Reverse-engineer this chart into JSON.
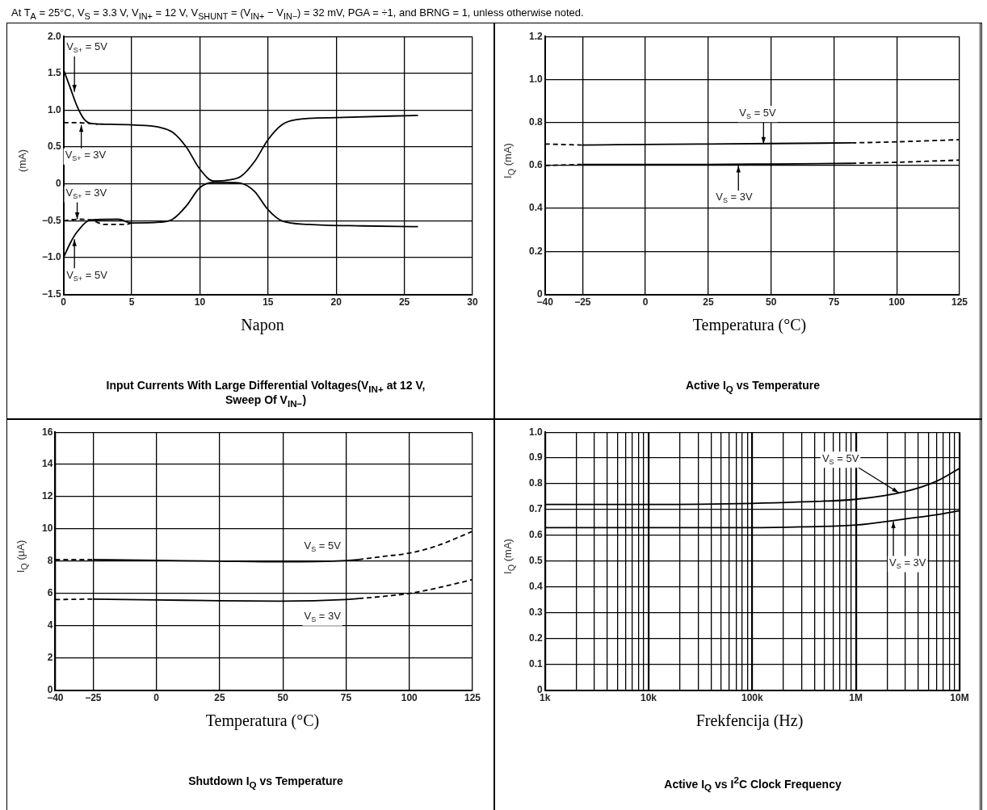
{
  "chart_data": [
    {
      "type": "other",
      "annotations": [
        "At T$_{A}$ = 25°C, V$_{S}$ = 3.3 V, V$_{IN+}$ = 12 V, V$_{SHUNT}$ = (V$_{IN+}$ − V$_{IN−}$) = 32 mV, PGA = ÷1, and BRNG = 1, unless otherwise noted."
      ]
    },
    {
      "type": "line",
      "title": "Input Currents With Large Differential Voltages(V$_{IN+}$ at 12 V, Sweep Of V$_{IN−}$)",
      "xlabel": "Napon",
      "ylabel": "(mA)",
      "xlim": [
        0,
        30
      ],
      "xticks": [
        0,
        5,
        10,
        15,
        20,
        25,
        30
      ],
      "ylim": [
        -1.5,
        2
      ],
      "yticks": [
        {
          "value": -1.5,
          "label": "−1.5"
        },
        {
          "value": -1,
          "label": "−1.0"
        },
        {
          "value": -0.5,
          "label": "−0.5"
        },
        0,
        0.5,
        {
          "value": 1,
          "label": "1.0"
        },
        1.5,
        {
          "value": 2,
          "label": "2.0"
        }
      ],
      "grid": true,
      "legend": false,
      "marker": "none",
      "series": [
        {
          "color": "#000000",
          "line_style": "solid",
          "x": [
            0,
            0.5,
            1,
            1.5,
            2,
            3,
            5,
            7,
            8,
            9,
            10,
            11,
            12,
            13,
            14,
            15,
            16,
            17,
            20,
            26
          ],
          "values": [
            1.55,
            1.3,
            1.05,
            0.88,
            0.82,
            0.81,
            0.8,
            0.77,
            0.7,
            0.5,
            0.2,
            0.04,
            0.05,
            0.1,
            0.3,
            0.6,
            0.8,
            0.87,
            0.9,
            0.93
          ]
        },
        {
          "color": "#000000",
          "line_style": "dashed",
          "x": [
            0,
            1,
            2,
            2.5
          ],
          "values": [
            0.83,
            0.83,
            0.82,
            0.81
          ]
        },
        {
          "color": "#000000",
          "line_style": "dashed",
          "x": [
            0,
            1,
            2,
            3,
            4.5,
            5
          ],
          "values": [
            -0.5,
            -0.48,
            -0.49,
            -0.55,
            -0.55,
            -0.53
          ]
        },
        {
          "color": "#000000",
          "line_style": "solid",
          "x": [
            0,
            0.5,
            1,
            2,
            4,
            5,
            7,
            8,
            9,
            10,
            11,
            12,
            13,
            14,
            15,
            16,
            18,
            22,
            26
          ],
          "values": [
            -1.0,
            -0.8,
            -0.65,
            -0.49,
            -0.48,
            -0.53,
            -0.52,
            -0.48,
            -0.3,
            -0.05,
            0.02,
            0.02,
            0.01,
            -0.1,
            -0.35,
            -0.5,
            -0.55,
            -0.57,
            -0.58
          ]
        }
      ],
      "annotations": [
        {
          "text": "V$_{S+}$ = 5V",
          "x": 0.8,
          "y": 1.25
        },
        {
          "text": "V$_{S+}$ = 3V",
          "x": 1.3,
          "y": 0.8
        },
        {
          "text": "V$_{S+}$ = 3V",
          "x": 1,
          "y": -0.48
        },
        {
          "text": "V$_{S+}$ = 5V",
          "x": 0.8,
          "y": -0.75
        }
      ]
    },
    {
      "type": "line",
      "title": "Active I$_{Q}$ vs Temperature",
      "xlabel": "Temperatura (°C)",
      "ylabel": "I$_{Q}$ (mA)",
      "xlim": [
        -40,
        125
      ],
      "xticks": [
        {
          "value": -40,
          "label": "−40"
        },
        {
          "value": -25,
          "label": "−25"
        },
        0,
        25,
        50,
        75,
        100,
        125
      ],
      "ylim": [
        0,
        1.2
      ],
      "yticks": [
        0,
        0.2,
        0.4,
        0.6,
        0.8,
        {
          "value": 1,
          "label": "1.0"
        },
        1.2
      ],
      "grid": true,
      "legend": false,
      "marker": "none",
      "series": [
        {
          "color": "#000000",
          "line_style": "dashed",
          "x": [
            -40,
            -25
          ],
          "values": [
            0.7,
            0.695
          ]
        },
        {
          "color": "#000000",
          "line_style": "solid",
          "x": [
            -25,
            0,
            25,
            50,
            82
          ],
          "values": [
            0.695,
            0.698,
            0.7,
            0.702,
            0.705
          ]
        },
        {
          "color": "#000000",
          "line_style": "dashed",
          "x": [
            82,
            100,
            125
          ],
          "values": [
            0.705,
            0.71,
            0.72
          ]
        },
        {
          "color": "#000000",
          "line_style": "dashed",
          "x": [
            -40,
            -25
          ],
          "values": [
            0.6,
            0.605
          ]
        },
        {
          "color": "#000000",
          "line_style": "solid",
          "x": [
            -25,
            25,
            50,
            82
          ],
          "values": [
            0.605,
            0.605,
            0.607,
            0.61
          ]
        },
        {
          "color": "#000000",
          "line_style": "dashed",
          "x": [
            82,
            100,
            125
          ],
          "values": [
            0.61,
            0.615,
            0.625
          ]
        }
      ],
      "annotations": [
        {
          "text": "V$_{S}$ = 5V",
          "x": 47,
          "y": 0.7
        },
        {
          "text": "V$_{S}$ = 3V",
          "x": 37,
          "y": 0.6
        }
      ]
    },
    {
      "type": "line",
      "title": "Shutdown I$_{Q}$ vs Temperature",
      "xlabel": "Temperatura (°C)",
      "ylabel": "I$_{Q}$ (μA)",
      "xlim": [
        -40,
        125
      ],
      "xticks": [
        {
          "value": -40,
          "label": "−40"
        },
        {
          "value": -25,
          "label": "−25"
        },
        0,
        25,
        50,
        75,
        100,
        125
      ],
      "ylim": [
        0,
        16
      ],
      "yticks": [
        0,
        2,
        4,
        6,
        8,
        10,
        12,
        14,
        16
      ],
      "grid": true,
      "legend": false,
      "marker": "none",
      "series": [
        {
          "color": "#000000",
          "line_style": "dashed",
          "x": [
            -40,
            -25
          ],
          "values": [
            8.1,
            8.1
          ]
        },
        {
          "color": "#000000",
          "line_style": "solid",
          "x": [
            -25,
            0,
            25,
            50,
            75,
            80
          ],
          "values": [
            8.1,
            8.05,
            8.0,
            7.96,
            8.04,
            8.1
          ]
        },
        {
          "color": "#000000",
          "line_style": "dashed",
          "x": [
            80,
            90,
            100,
            110,
            125
          ],
          "values": [
            8.1,
            8.3,
            8.5,
            8.9,
            9.85
          ]
        },
        {
          "color": "#000000",
          "line_style": "dashed",
          "x": [
            -40,
            -25
          ],
          "values": [
            5.62,
            5.65
          ]
        },
        {
          "color": "#000000",
          "line_style": "solid",
          "x": [
            -25,
            0,
            25,
            50,
            75,
            80
          ],
          "values": [
            5.65,
            5.6,
            5.55,
            5.52,
            5.62,
            5.68
          ]
        },
        {
          "color": "#000000",
          "line_style": "dashed",
          "x": [
            80,
            90,
            100,
            110,
            125
          ],
          "values": [
            5.68,
            5.82,
            6.0,
            6.3,
            6.86
          ]
        }
      ],
      "annotations": [
        {
          "text": "V$_{S}$ = 5V",
          "x": 60,
          "y": 8.0
        },
        {
          "text": "V$_{S}$ = 3V",
          "x": 60,
          "y": 5.55
        }
      ]
    },
    {
      "type": "line",
      "title": "Active I$_{Q}$ vs I$^{2}$C Clock Frequency",
      "xlabel": "Frekfencija (Hz)",
      "ylabel": "I$_{Q}$ (mA)",
      "log": "x",
      "xlim": [
        1000,
        10000000
      ],
      "xticks": [
        {
          "value": 1000,
          "label": "1k"
        },
        {
          "value": 2000,
          "label": null
        },
        {
          "value": 3000,
          "label": null
        },
        {
          "value": 4000,
          "label": null
        },
        {
          "value": 5000,
          "label": null
        },
        {
          "value": 6000,
          "label": null
        },
        {
          "value": 7000,
          "label": null
        },
        {
          "value": 8000,
          "label": null
        },
        {
          "value": 9000,
          "label": null
        },
        {
          "value": 10000,
          "label": "10k"
        },
        {
          "value": 20000,
          "label": null
        },
        {
          "value": 30000,
          "label": null
        },
        {
          "value": 40000,
          "label": null
        },
        {
          "value": 50000,
          "label": null
        },
        {
          "value": 60000,
          "label": null
        },
        {
          "value": 70000,
          "label": null
        },
        {
          "value": 80000,
          "label": null
        },
        {
          "value": 90000,
          "label": null
        },
        {
          "value": 100000,
          "label": "100k"
        },
        {
          "value": 200000,
          "label": null
        },
        {
          "value": 300000,
          "label": null
        },
        {
          "value": 400000,
          "label": null
        },
        {
          "value": 500000,
          "label": null
        },
        {
          "value": 600000,
          "label": null
        },
        {
          "value": 700000,
          "label": null
        },
        {
          "value": 800000,
          "label": null
        },
        {
          "value": 900000,
          "label": null
        },
        {
          "value": 1000000,
          "label": "1M"
        },
        {
          "value": 2000000,
          "label": null
        },
        {
          "value": 3000000,
          "label": null
        },
        {
          "value": 4000000,
          "label": null
        },
        {
          "value": 5000000,
          "label": null
        },
        {
          "value": 6000000,
          "label": null
        },
        {
          "value": 7000000,
          "label": null
        },
        {
          "value": 8000000,
          "label": null
        },
        {
          "value": 9000000,
          "label": null
        },
        {
          "value": 10000000,
          "label": "10M"
        }
      ],
      "ylim": [
        0,
        1
      ],
      "yticks": [
        0,
        0.1,
        0.2,
        0.3,
        0.4,
        0.5,
        0.6,
        0.7,
        0.8,
        0.9,
        {
          "value": 1,
          "label": "1.0"
        }
      ],
      "grid": true,
      "legend": false,
      "marker": "none",
      "series": [
        {
          "color": "#000000",
          "line_style": "solid",
          "x": [
            1000,
            10000,
            100000,
            300000,
            1000000,
            3000000,
            6000000,
            10000000
          ],
          "values": [
            0.72,
            0.72,
            0.724,
            0.73,
            0.74,
            0.77,
            0.81,
            0.86
          ]
        },
        {
          "color": "#000000",
          "line_style": "solid",
          "x": [
            1000,
            10000,
            100000,
            300000,
            1000000,
            3000000,
            6000000,
            10000000
          ],
          "values": [
            0.63,
            0.63,
            0.63,
            0.633,
            0.64,
            0.664,
            0.68,
            0.696
          ]
        }
      ],
      "annotations": [
        {
          "text": "V$_{S}$ = 5V",
          "x": 2600000,
          "y": 0.765
        },
        {
          "text": "V$_{S}$ = 3V",
          "x": 2300000,
          "y": 0.655
        }
      ]
    }
  ]
}
